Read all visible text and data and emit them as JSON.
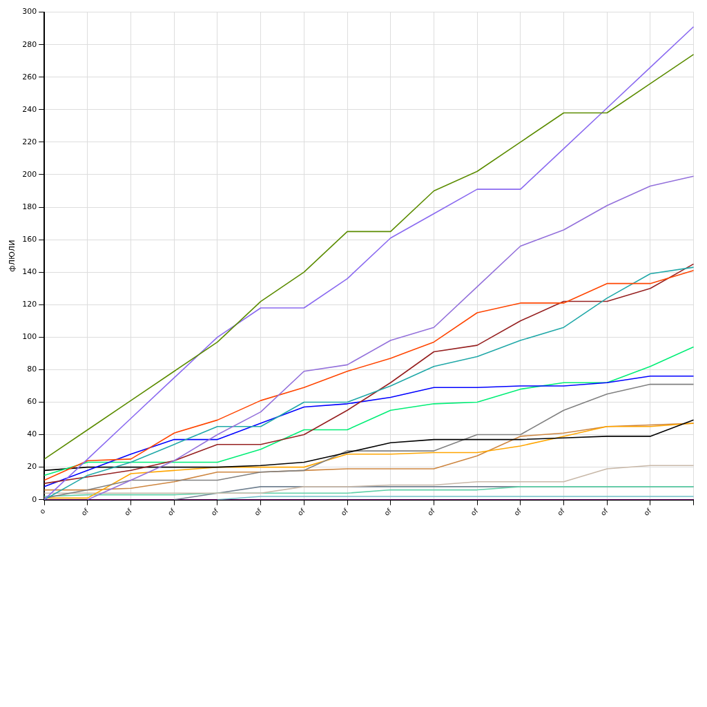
{
  "chart_data": {
    "type": "line",
    "ylabel": "фЛЮЛИ",
    "categories": [
      "o",
      "of",
      "of",
      "of",
      "of",
      "of",
      "of",
      "of",
      "of",
      "of",
      "of",
      "of",
      "of",
      "of",
      "of",
      null
    ],
    "ylim": [
      0,
      300
    ],
    "yticks": [
      0,
      20,
      40,
      60,
      80,
      100,
      120,
      140,
      160,
      180,
      200,
      220,
      240,
      260,
      280,
      300
    ],
    "grid": true,
    "legend": false,
    "marker": "none",
    "line_style": "solid",
    "series": [
      {
        "color": "#5b8c00",
        "values": [
          25,
          43,
          61,
          79,
          97,
          122,
          140,
          165,
          165,
          190,
          202,
          220,
          238,
          238,
          256,
          274
        ]
      },
      {
        "color": "#8a6af0",
        "values": [
          0,
          25,
          50,
          75,
          100,
          118,
          118,
          136,
          161,
          176,
          191,
          191,
          216,
          241,
          266,
          291
        ]
      },
      {
        "color": "#9370db",
        "values": [
          null,
          0,
          12,
          24,
          40,
          54,
          79,
          83,
          98,
          106,
          131,
          156,
          166,
          181,
          193,
          199
        ]
      },
      {
        "color": "#ff4500",
        "values": [
          12,
          24,
          25,
          41,
          49,
          61,
          69,
          79,
          87,
          97,
          115,
          121,
          121,
          133,
          133,
          141
        ]
      },
      {
        "color": "#20a8a8",
        "values": [
          0,
          15,
          23,
          34,
          45,
          45,
          60,
          60,
          70,
          82,
          88,
          98,
          106,
          124,
          139,
          143
        ]
      },
      {
        "color": "#962020",
        "values": [
          10,
          14,
          18,
          24,
          34,
          34,
          40,
          55,
          72,
          91,
          95,
          110,
          122,
          122,
          130,
          145
        ]
      },
      {
        "color": "#0000ff",
        "values": [
          8,
          18,
          28,
          37,
          37,
          47,
          57,
          59,
          63,
          69,
          69,
          70,
          70,
          72,
          76,
          76
        ]
      },
      {
        "color": "#00ee76",
        "values": [
          15,
          23,
          23,
          23,
          23,
          31,
          43,
          43,
          55,
          59,
          60,
          68,
          72,
          72,
          82,
          94
        ]
      },
      {
        "color": "#000000",
        "values": [
          18,
          20,
          20,
          20,
          20,
          21,
          23,
          29,
          35,
          37,
          37,
          37,
          38,
          39,
          39,
          49
        ]
      },
      {
        "color": "#808080",
        "values": [
          1,
          6,
          12,
          12,
          12,
          17,
          18,
          30,
          30,
          30,
          40,
          40,
          55,
          65,
          71,
          71
        ]
      },
      {
        "color": "#ffa500",
        "values": [
          1,
          1,
          16,
          18,
          20,
          20,
          20,
          28,
          28,
          29,
          29,
          33,
          39,
          45,
          45,
          47
        ]
      },
      {
        "color": "#cd853f",
        "values": [
          6,
          6,
          7,
          11,
          17,
          17,
          18,
          19,
          19,
          19,
          27,
          39,
          41,
          45,
          46,
          47
        ]
      },
      {
        "color": "#c8b8a8",
        "values": [
          4,
          4,
          4,
          4,
          4,
          4,
          8,
          8,
          9,
          9,
          11,
          11,
          11,
          19,
          21,
          21
        ]
      },
      {
        "color": "#60d0a8",
        "values": [
          2,
          3,
          3,
          3,
          4,
          4,
          4,
          4,
          6,
          6,
          6,
          8,
          8,
          8,
          8,
          8
        ]
      },
      {
        "color": "#708090",
        "values": [
          null,
          null,
          null,
          0,
          4,
          8,
          8,
          8,
          8,
          8,
          8,
          8,
          8,
          8,
          8,
          8
        ]
      },
      {
        "color": "#70c0c8",
        "values": [
          null,
          null,
          null,
          null,
          0,
          2,
          2,
          2,
          2,
          2,
          2,
          2,
          2,
          2,
          2,
          2
        ]
      },
      {
        "color": "#800080",
        "values": [
          0,
          0,
          0,
          0,
          0,
          0,
          0,
          0,
          0,
          0,
          0,
          0,
          0,
          0,
          0,
          0
        ]
      }
    ]
  }
}
